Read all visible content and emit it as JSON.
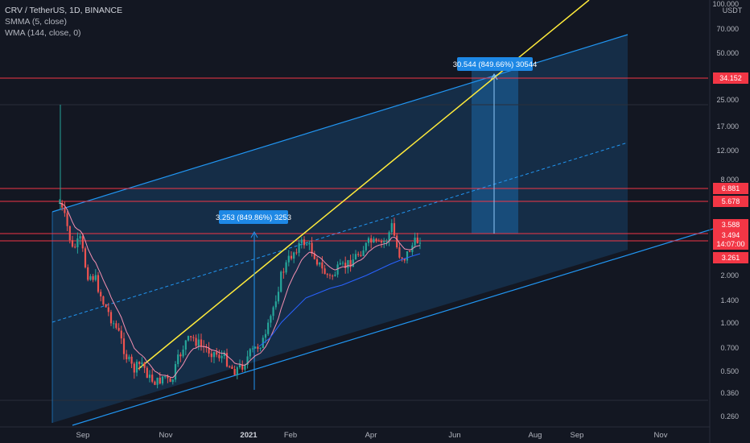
{
  "legend": {
    "symbol": "CRV / TetherUS, 1D, BINANCE",
    "indicator1": "SMMA (5, close)",
    "indicator2": "WMA (144, close, 0)"
  },
  "price_axis": {
    "unit": "USDT",
    "ticks": [
      "100.000",
      "70.000",
      "50.000",
      "25.000",
      "17.000",
      "12.000",
      "8.000",
      "2.000",
      "1.400",
      "1.000",
      "0.700",
      "0.500",
      "0.360",
      "0.260"
    ]
  },
  "time_axis": {
    "labels": [
      "Sep",
      "Nov",
      "2021",
      "Feb",
      "Apr",
      "Jun",
      "Aug",
      "Sep",
      "Nov"
    ]
  },
  "price_tags": [
    {
      "label": "34.152",
      "color": "#f23645"
    },
    {
      "label": "6.881",
      "color": "#f23645"
    },
    {
      "label": "5.678",
      "color": "#f23645"
    },
    {
      "label": "3.588",
      "color": "#f23645"
    },
    {
      "label": "3.494",
      "color": "#f23645"
    },
    {
      "label": "14:07:00",
      "color": "#f23645"
    },
    {
      "label": "3.261",
      "color": "#f23645"
    }
  ],
  "measurements": [
    {
      "label": "3.253 (849.86%) 3253"
    },
    {
      "label": "30.544 (849.66%) 30544"
    }
  ],
  "colors": {
    "background": "#131722",
    "up": "#26a69a",
    "down": "#ef5350",
    "channel": "#2196f3",
    "trendline": "#ffeb3b",
    "levels": "#f23645",
    "smma": "#f48fb1",
    "wma": "#2962ff"
  },
  "chart_data": {
    "type": "candlestick",
    "price_scale": "log",
    "horizontal_levels": [
      34.152,
      6.881,
      5.678,
      3.588,
      3.494,
      3.261
    ],
    "candles_summary": {
      "start": "Aug 2020",
      "end": "May 2021",
      "approx_high": 25,
      "approx_low": 0.36,
      "last_close": 3.494
    }
  }
}
